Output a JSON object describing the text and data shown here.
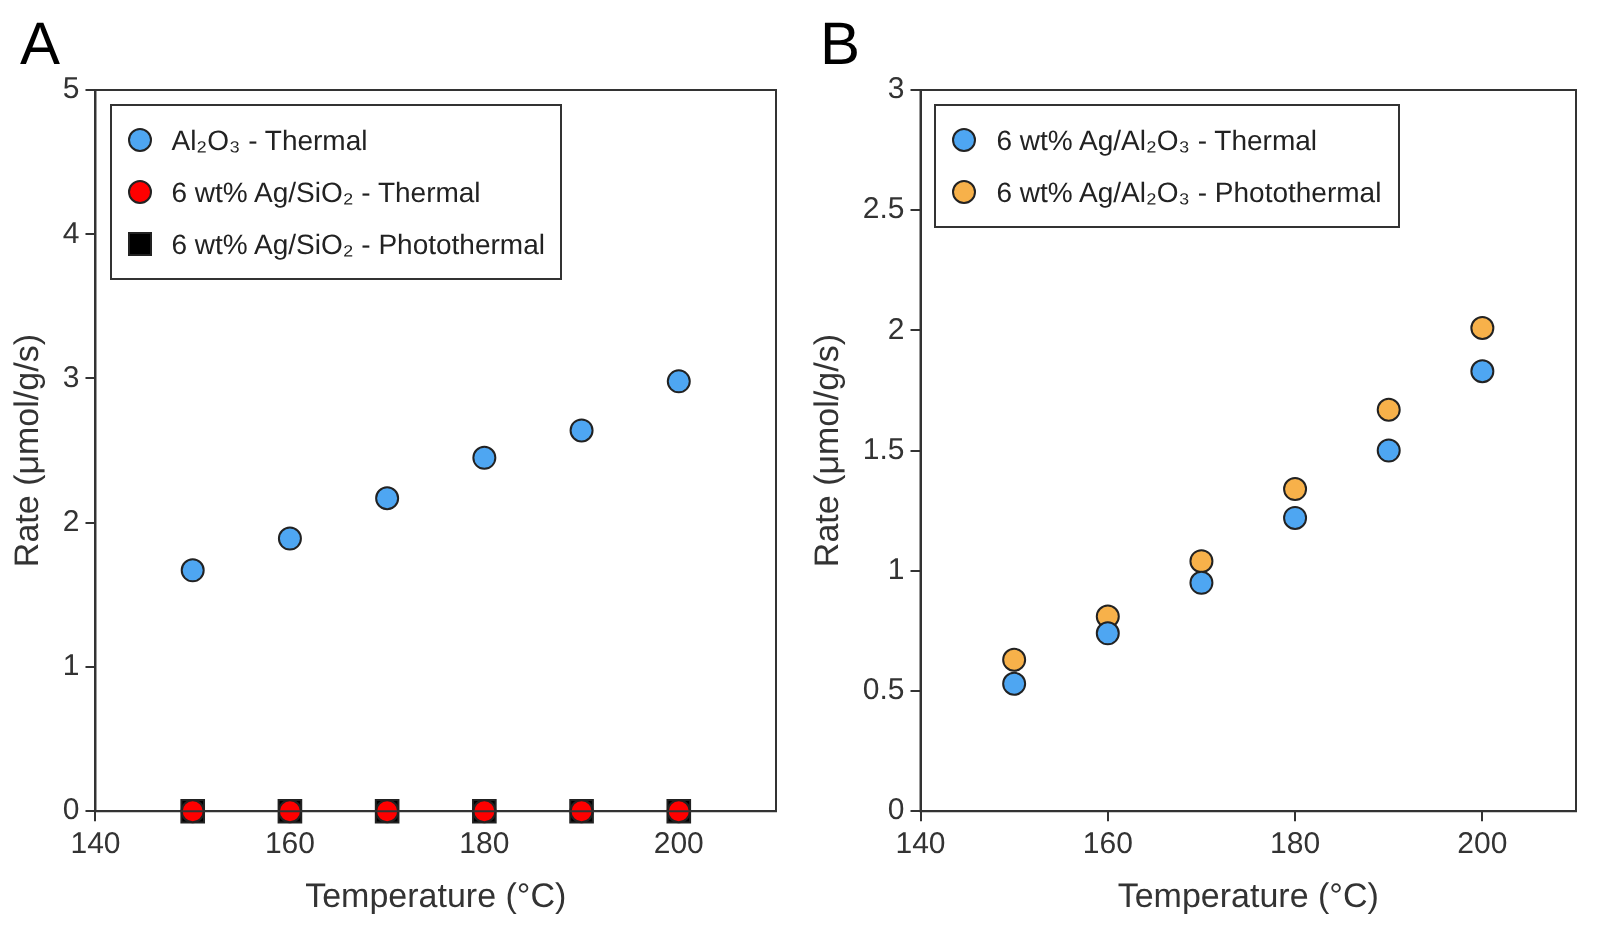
{
  "chart_data": [
    {
      "type": "scatter",
      "title": "A",
      "xlabel": "Temperature (°C)",
      "ylabel": "Rate (μmol/g/s)",
      "x": [
        150,
        160,
        170,
        180,
        190,
        200
      ],
      "xlim": [
        140,
        210
      ],
      "xticks": [
        140,
        160,
        180,
        200
      ],
      "ylim": [
        0,
        5
      ],
      "yticks": [
        0,
        1,
        2,
        3,
        4,
        5
      ],
      "grid": false,
      "legend": "top left",
      "series": [
        {
          "name": "Al₂O₃ - Thermal",
          "color": "#4ea6f2",
          "marker": "circle",
          "values": [
            1.67,
            1.89,
            2.17,
            2.45,
            2.64,
            2.98
          ]
        },
        {
          "name": "6 wt% Ag/SiO₂ - Thermal",
          "color": "#ff0000",
          "marker": "circle",
          "values": [
            0,
            0,
            0,
            0,
            0,
            0
          ]
        },
        {
          "name": "6 wt% Ag/SiO₂ - Photothermal",
          "color": "#000000",
          "marker": "square",
          "values": [
            0,
            0,
            0,
            0,
            0,
            0
          ]
        }
      ]
    },
    {
      "type": "scatter",
      "title": "B",
      "xlabel": "Temperature (°C)",
      "ylabel": "Rate (μmol/g/s)",
      "x": [
        150,
        160,
        170,
        180,
        190,
        200
      ],
      "xlim": [
        140,
        210
      ],
      "xticks": [
        140,
        160,
        180,
        200
      ],
      "ylim": [
        0,
        3
      ],
      "yticks": [
        0,
        0.5,
        1,
        1.5,
        2,
        2.5,
        3
      ],
      "grid": false,
      "legend": "top left",
      "series": [
        {
          "name": "6 wt% Ag/Al₂O₃ - Thermal",
          "color": "#4ea6f2",
          "marker": "circle",
          "values": [
            0.53,
            0.74,
            0.95,
            1.22,
            1.5,
            1.83
          ]
        },
        {
          "name": "6 wt% Ag/Al₂O₃ - Photothermal",
          "color": "#f7b14a",
          "marker": "circle",
          "values": [
            0.63,
            0.81,
            1.04,
            1.34,
            1.67,
            2.01
          ]
        }
      ]
    }
  ]
}
